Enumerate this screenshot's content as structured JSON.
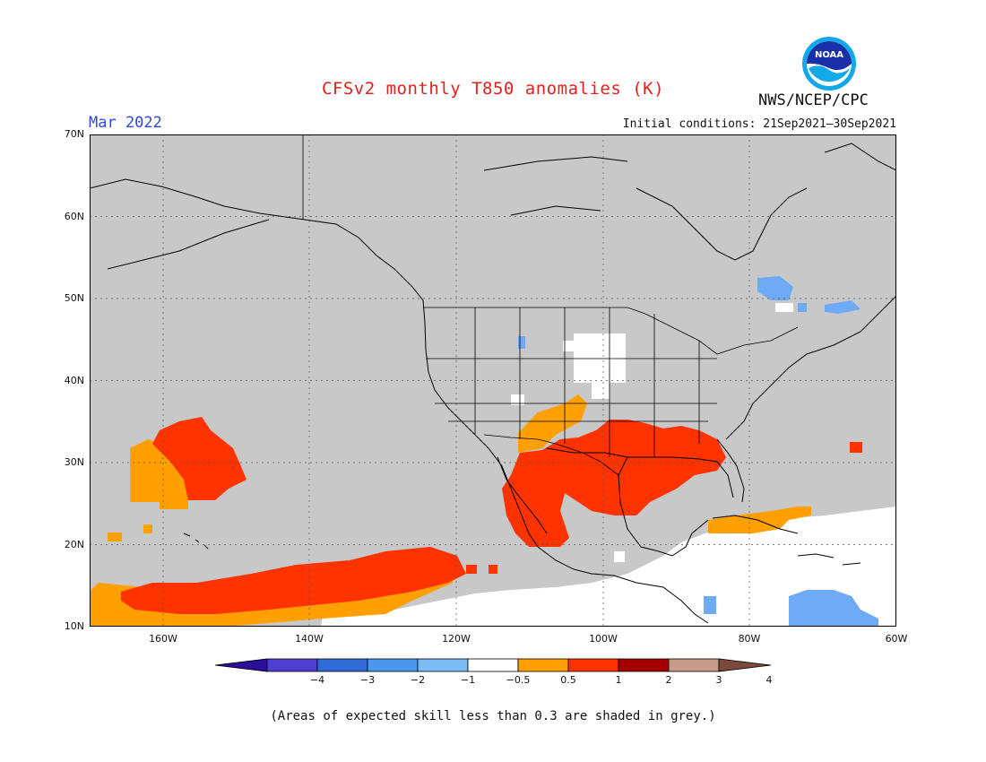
{
  "title": "CFSv2 monthly T850 anomalies (K)",
  "period": "Mar 2022",
  "agency": "NWS/NCEP/CPC",
  "logo_text": "NOAA",
  "initial_conditions": "Initial conditions: 21Sep2021–30Sep2021",
  "footnote": "(Areas of expected skill less than 0.3 are shaded in grey.)",
  "map": {
    "lon_range": [
      -170,
      -60
    ],
    "lat_range": [
      10,
      70
    ],
    "lat_labels": [
      "70N",
      "60N",
      "50N",
      "40N",
      "30N",
      "20N",
      "10N"
    ],
    "lon_labels": [
      "160W",
      "140W",
      "120W",
      "100W",
      "80W",
      "60W"
    ],
    "colors": {
      "grey": "#c8c8c8",
      "white": "#ffffff",
      "orange": "#ff9f00",
      "red_orange": "#ff3300",
      "light_blue": "#6eaaf5",
      "coast": "#000000"
    }
  },
  "colorbar": {
    "labels": [
      "−4",
      "−3",
      "−2",
      "−1",
      "−0.5",
      "0.5",
      "1",
      "2",
      "3",
      "4"
    ],
    "colors": [
      "#2b0f9a",
      "#4f3fd1",
      "#2f6ad6",
      "#4a97ee",
      "#7cbcf5",
      "#ffffff",
      "#ff9f00",
      "#ff3300",
      "#a50000",
      "#c89a8a",
      "#7a4a3a"
    ]
  }
}
